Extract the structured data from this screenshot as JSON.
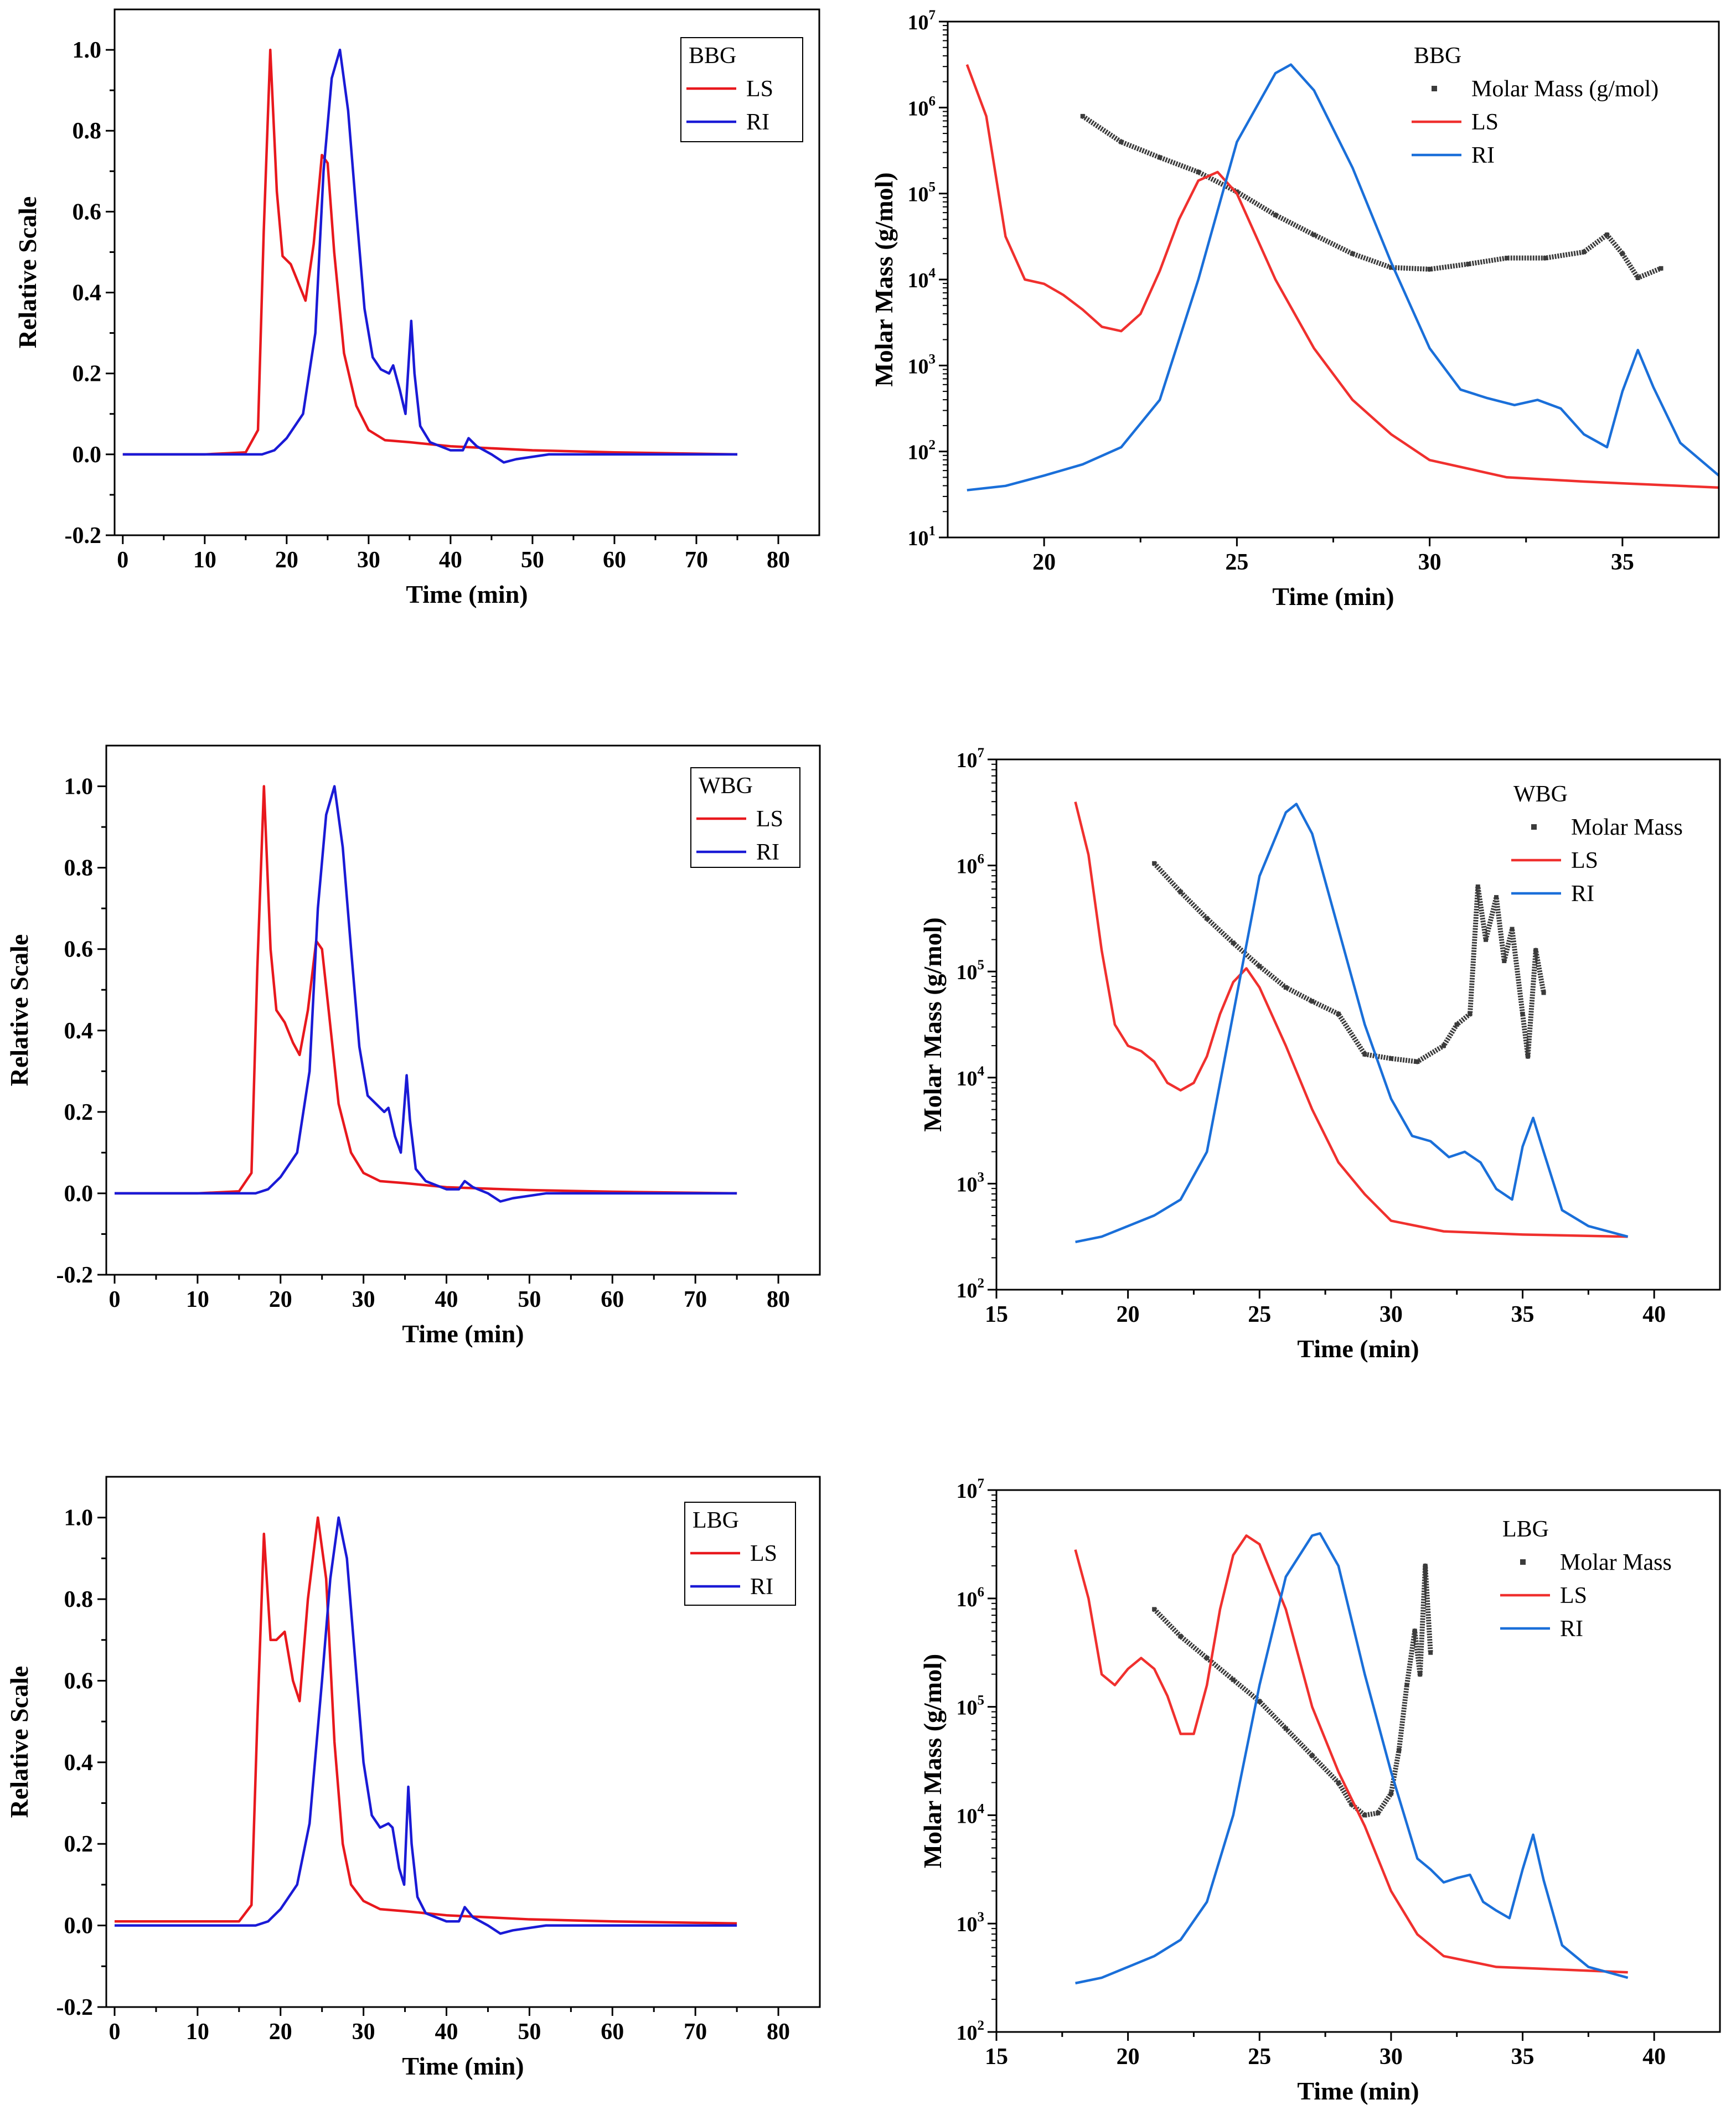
{
  "chart_data": [
    {
      "id": "bbg-relative",
      "type": "line",
      "legend": {
        "title": "BBG",
        "placement": "top-right"
      },
      "xlabel": "Time (min)",
      "ylabel": "Relative Scale",
      "xlim": [
        -1,
        85
      ],
      "ylim": [
        -0.2,
        1.1
      ],
      "xticks": [
        0,
        10,
        20,
        30,
        40,
        50,
        60,
        70,
        80
      ],
      "yticks": [
        -0.2,
        0.0,
        0.2,
        0.4,
        0.6,
        0.8,
        1.0
      ],
      "ytick_labels": [
        "-0.2",
        "0.0",
        "0.2",
        "0.4",
        "0.6",
        "0.8",
        "1.0"
      ],
      "series": [
        {
          "name": "LS",
          "color": "#e8181d",
          "x": [
            0,
            10,
            15,
            16.5,
            17.2,
            18.0,
            18.8,
            19.5,
            20.5,
            21.5,
            22.3,
            23.3,
            24.3,
            25.0,
            25.8,
            27,
            28.5,
            30,
            32,
            35,
            40,
            50,
            60,
            75
          ],
          "y": [
            0.0,
            0.0,
            0.005,
            0.06,
            0.55,
            1.0,
            0.65,
            0.49,
            0.47,
            0.42,
            0.38,
            0.52,
            0.74,
            0.72,
            0.5,
            0.25,
            0.12,
            0.06,
            0.035,
            0.03,
            0.02,
            0.01,
            0.005,
            0.0
          ]
        },
        {
          "name": "RI",
          "color": "#1a1ad6",
          "x": [
            0,
            10,
            17,
            18.5,
            20,
            22,
            23.5,
            24.5,
            25.5,
            26.5,
            27.5,
            28.5,
            29.5,
            30.5,
            31.5,
            32.5,
            33.0,
            33.8,
            34.5,
            35.2,
            35.6,
            36.3,
            37.5,
            40,
            41.5,
            42.2,
            43.2,
            45,
            46.5,
            48,
            52,
            60,
            75
          ],
          "y": [
            0.0,
            0.0,
            0.0,
            0.01,
            0.04,
            0.1,
            0.3,
            0.7,
            0.93,
            1.0,
            0.85,
            0.6,
            0.36,
            0.24,
            0.21,
            0.2,
            0.22,
            0.16,
            0.1,
            0.33,
            0.2,
            0.07,
            0.03,
            0.01,
            0.01,
            0.04,
            0.02,
            0.0,
            -0.02,
            -0.012,
            0.0,
            0.0,
            0.0
          ]
        }
      ]
    },
    {
      "id": "bbg-molar",
      "type": "line",
      "legend": {
        "title": "BBG",
        "placement": "top-right"
      },
      "xlabel": "Time (min)",
      "ylabel": "Molar Mass (g/mol)",
      "yscale": "log",
      "xlim": [
        17.5,
        37.5
      ],
      "ylim": [
        1,
        7
      ],
      "xticks": [
        20,
        25,
        30,
        35
      ],
      "yticks": [
        1,
        2,
        3,
        4,
        5,
        6,
        7
      ],
      "series": [
        {
          "name": "Molar Mass (g/mol)",
          "color": "#3b3b3b",
          "marker": "dot",
          "x": [
            21,
            22,
            23,
            24,
            25,
            26,
            27,
            28,
            29,
            30,
            31,
            32,
            33,
            34,
            34.6,
            35,
            35.4,
            36
          ],
          "y": [
            5.9,
            5.6,
            5.42,
            5.25,
            5.02,
            4.75,
            4.52,
            4.3,
            4.14,
            4.12,
            4.18,
            4.25,
            4.25,
            4.32,
            4.52,
            4.3,
            4.02,
            4.13
          ]
        },
        {
          "name": "LS",
          "color": "#f0302e",
          "x": [
            18,
            18.5,
            19,
            19.5,
            20,
            20.5,
            21,
            21.5,
            22,
            22.5,
            23,
            23.5,
            24,
            24.5,
            25,
            26,
            27,
            28,
            29,
            30,
            32,
            34,
            37.5
          ],
          "y": [
            6.5,
            5.9,
            4.5,
            4.0,
            3.95,
            3.82,
            3.65,
            3.45,
            3.4,
            3.6,
            4.1,
            4.7,
            5.15,
            5.25,
            5.0,
            4.0,
            3.2,
            2.6,
            2.2,
            1.9,
            1.7,
            1.65,
            1.58
          ]
        },
        {
          "name": "RI",
          "color": "#1a6fd9",
          "x": [
            18,
            19,
            20,
            21,
            22,
            23,
            24,
            25,
            26,
            26.4,
            27,
            28,
            29,
            30,
            30.8,
            31.5,
            32.2,
            32.8,
            33.4,
            34,
            34.6,
            35,
            35.4,
            35.8,
            36.5,
            37.5
          ],
          "y": [
            1.55,
            1.6,
            1.72,
            1.85,
            2.05,
            2.6,
            4.0,
            5.6,
            6.4,
            6.5,
            6.2,
            5.3,
            4.2,
            3.2,
            2.72,
            2.62,
            2.54,
            2.6,
            2.5,
            2.2,
            2.05,
            2.7,
            3.18,
            2.75,
            2.1,
            1.72
          ]
        }
      ]
    },
    {
      "id": "wbg-relative",
      "type": "line",
      "legend": {
        "title": "WBG",
        "placement": "top-right"
      },
      "xlabel": "Time (min)",
      "ylabel": "Relative Scale",
      "xlim": [
        -1,
        85
      ],
      "ylim": [
        -0.2,
        1.1
      ],
      "xticks": [
        0,
        10,
        20,
        30,
        40,
        50,
        60,
        70,
        80
      ],
      "yticks": [
        -0.2,
        0.0,
        0.2,
        0.4,
        0.6,
        0.8,
        1.0
      ],
      "ytick_labels": [
        "-0.2",
        "0.0",
        "0.2",
        "0.4",
        "0.6",
        "0.8",
        "1.0"
      ],
      "series": [
        {
          "name": "LS",
          "color": "#e8181d",
          "x": [
            0,
            10,
            15,
            16.5,
            17.2,
            18.0,
            18.8,
            19.5,
            20.5,
            21.5,
            22.3,
            23.3,
            24.3,
            25.0,
            25.8,
            27,
            28.5,
            30,
            32,
            35,
            40,
            50,
            60,
            75
          ],
          "y": [
            0.0,
            0.0,
            0.005,
            0.05,
            0.55,
            1.0,
            0.6,
            0.45,
            0.42,
            0.37,
            0.34,
            0.45,
            0.62,
            0.6,
            0.45,
            0.22,
            0.1,
            0.05,
            0.03,
            0.025,
            0.015,
            0.008,
            0.004,
            0.0
          ]
        },
        {
          "name": "RI",
          "color": "#1a1ad6",
          "x": [
            0,
            10,
            17,
            18.5,
            20,
            22,
            23.5,
            24.5,
            25.5,
            26.5,
            27.5,
            28.5,
            29.5,
            30.5,
            31.5,
            32.5,
            33.0,
            33.8,
            34.5,
            35.2,
            35.6,
            36.3,
            37.5,
            40,
            41.5,
            42.2,
            43.2,
            45,
            46.5,
            48,
            52,
            60,
            75
          ],
          "y": [
            0.0,
            0.0,
            0.0,
            0.01,
            0.04,
            0.1,
            0.3,
            0.7,
            0.93,
            1.0,
            0.85,
            0.6,
            0.36,
            0.24,
            0.22,
            0.2,
            0.21,
            0.14,
            0.1,
            0.29,
            0.18,
            0.06,
            0.03,
            0.01,
            0.01,
            0.03,
            0.015,
            0.0,
            -0.02,
            -0.012,
            0.0,
            0.0,
            0.0
          ]
        }
      ]
    },
    {
      "id": "wbg-molar",
      "type": "line",
      "legend": {
        "title": "WBG",
        "placement": "top-right"
      },
      "xlabel": "Time (min)",
      "ylabel": "Molar Mass (g/mol)",
      "yscale": "log",
      "xlim": [
        15,
        42.5
      ],
      "ylim": [
        2,
        7
      ],
      "xticks": [
        15,
        20,
        25,
        30,
        35,
        40
      ],
      "yticks": [
        2,
        3,
        4,
        5,
        6,
        7
      ],
      "series": [
        {
          "name": "Molar Mass",
          "color": "#3b3b3b",
          "marker": "dot",
          "x": [
            21,
            22,
            23,
            24,
            25,
            26,
            27,
            28,
            29,
            30,
            31,
            32,
            32.5,
            33,
            33.3,
            33.6,
            34,
            34.3,
            34.6,
            35,
            35.2,
            35.5,
            35.8
          ],
          "y": [
            6.02,
            5.75,
            5.5,
            5.27,
            5.05,
            4.85,
            4.72,
            4.6,
            4.22,
            4.18,
            4.15,
            4.3,
            4.5,
            4.6,
            5.8,
            5.3,
            5.7,
            5.1,
            5.4,
            4.6,
            4.2,
            5.2,
            4.8
          ]
        },
        {
          "name": "LS",
          "color": "#f0302e",
          "x": [
            18,
            18.5,
            19,
            19.5,
            20,
            20.5,
            21,
            21.5,
            22,
            22.5,
            23,
            23.5,
            24,
            24.5,
            25,
            26,
            27,
            28,
            29,
            30,
            32,
            35,
            39
          ],
          "y": [
            6.6,
            6.1,
            5.2,
            4.5,
            4.3,
            4.25,
            4.15,
            3.95,
            3.88,
            3.95,
            4.2,
            4.6,
            4.9,
            5.03,
            4.85,
            4.3,
            3.7,
            3.2,
            2.9,
            2.65,
            2.55,
            2.52,
            2.5
          ]
        },
        {
          "name": "RI",
          "color": "#1a6fd9",
          "x": [
            18,
            19,
            20,
            21,
            22,
            23,
            24,
            25,
            26,
            26.4,
            27,
            28,
            29,
            30,
            30.8,
            31.5,
            32.2,
            32.8,
            33.4,
            34,
            34.6,
            35,
            35.4,
            35.8,
            36.5,
            37.5,
            39
          ],
          "y": [
            2.45,
            2.5,
            2.6,
            2.7,
            2.85,
            3.3,
            4.6,
            5.9,
            6.5,
            6.58,
            6.3,
            5.4,
            4.5,
            3.8,
            3.45,
            3.4,
            3.25,
            3.3,
            3.2,
            2.95,
            2.85,
            3.35,
            3.62,
            3.3,
            2.75,
            2.6,
            2.5
          ]
        }
      ]
    },
    {
      "id": "lbg-relative",
      "type": "line",
      "legend": {
        "title": "LBG",
        "placement": "top-right"
      },
      "xlabel": "Time (min)",
      "ylabel": "Relative Scale",
      "xlim": [
        -1,
        85
      ],
      "ylim": [
        -0.2,
        1.1
      ],
      "xticks": [
        0,
        10,
        20,
        30,
        40,
        50,
        60,
        70,
        80
      ],
      "yticks": [
        -0.2,
        0.0,
        0.2,
        0.4,
        0.6,
        0.8,
        1.0
      ],
      "ytick_labels": [
        "-0.2",
        "0.0",
        "0.2",
        "0.4",
        "0.6",
        "0.8",
        "1.0"
      ],
      "series": [
        {
          "name": "LS",
          "color": "#e8181d",
          "x": [
            0,
            10,
            15,
            16.5,
            17.2,
            18.0,
            18.8,
            19.5,
            20.5,
            21.5,
            22.3,
            23.3,
            24.5,
            25.5,
            26.5,
            27.5,
            28.5,
            30,
            32,
            35,
            40,
            50,
            60,
            75
          ],
          "y": [
            0.01,
            0.01,
            0.01,
            0.05,
            0.5,
            0.96,
            0.7,
            0.7,
            0.72,
            0.6,
            0.55,
            0.8,
            1.0,
            0.85,
            0.45,
            0.2,
            0.1,
            0.06,
            0.04,
            0.035,
            0.025,
            0.015,
            0.01,
            0.005
          ]
        },
        {
          "name": "RI",
          "color": "#1a1ad6",
          "x": [
            0,
            10,
            17,
            18.5,
            20,
            22,
            23.5,
            25,
            26,
            27,
            28,
            29,
            30,
            31,
            32,
            33,
            33.5,
            34.3,
            34.9,
            35.4,
            35.8,
            36.5,
            37.5,
            40,
            41.5,
            42.2,
            43.2,
            45,
            46.5,
            48,
            52,
            60,
            75
          ],
          "y": [
            0.0,
            0.0,
            0.0,
            0.01,
            0.04,
            0.1,
            0.25,
            0.6,
            0.85,
            1.0,
            0.9,
            0.65,
            0.4,
            0.27,
            0.24,
            0.25,
            0.24,
            0.14,
            0.1,
            0.34,
            0.2,
            0.07,
            0.03,
            0.01,
            0.01,
            0.045,
            0.02,
            0.0,
            -0.02,
            -0.012,
            0.0,
            0.0,
            0.0
          ]
        }
      ]
    },
    {
      "id": "lbg-molar",
      "type": "line",
      "legend": {
        "title": "LBG",
        "placement": "top-right"
      },
      "xlabel": "Time (min)",
      "ylabel": "Molar Mass (g/mol)",
      "yscale": "log",
      "xlim": [
        15,
        42.5
      ],
      "ylim": [
        2,
        7
      ],
      "xticks": [
        15,
        20,
        25,
        30,
        35,
        40
      ],
      "yticks": [
        2,
        3,
        4,
        5,
        6,
        7
      ],
      "series": [
        {
          "name": "Molar Mass",
          "color": "#3b3b3b",
          "marker": "dot",
          "x": [
            21,
            22,
            23,
            24,
            25,
            26,
            27,
            28,
            28.5,
            29,
            29.5,
            30,
            30.3,
            30.6,
            30.9,
            31.1,
            31.3,
            31.5
          ],
          "y": [
            5.9,
            5.65,
            5.45,
            5.25,
            5.05,
            4.8,
            4.55,
            4.3,
            4.1,
            4.0,
            4.02,
            4.2,
            4.6,
            5.2,
            5.7,
            5.3,
            6.3,
            5.5
          ]
        },
        {
          "name": "LS",
          "color": "#f0302e",
          "x": [
            18,
            18.5,
            19,
            19.5,
            20,
            20.5,
            21,
            21.5,
            22,
            22.5,
            23,
            23.5,
            24,
            24.5,
            25,
            26,
            27,
            28,
            29,
            30,
            31,
            32,
            34,
            36,
            39
          ],
          "y": [
            6.45,
            6.0,
            5.3,
            5.2,
            5.35,
            5.45,
            5.35,
            5.1,
            4.75,
            4.75,
            5.2,
            5.9,
            6.4,
            6.58,
            6.5,
            5.9,
            5.0,
            4.4,
            3.9,
            3.3,
            2.9,
            2.7,
            2.6,
            2.58,
            2.55
          ]
        },
        {
          "name": "RI",
          "color": "#1a6fd9",
          "x": [
            18,
            19,
            20,
            21,
            22,
            23,
            24,
            25,
            26,
            27,
            27.3,
            28,
            29,
            30,
            31,
            31.5,
            32,
            32.5,
            33,
            33.5,
            34,
            34.5,
            35,
            35.4,
            35.8,
            36.5,
            37.5,
            39
          ],
          "y": [
            2.45,
            2.5,
            2.6,
            2.7,
            2.85,
            3.2,
            4.0,
            5.2,
            6.2,
            6.58,
            6.6,
            6.3,
            5.3,
            4.4,
            3.6,
            3.5,
            3.38,
            3.42,
            3.45,
            3.2,
            3.12,
            3.05,
            3.5,
            3.82,
            3.4,
            2.8,
            2.6,
            2.5
          ]
        }
      ]
    }
  ]
}
